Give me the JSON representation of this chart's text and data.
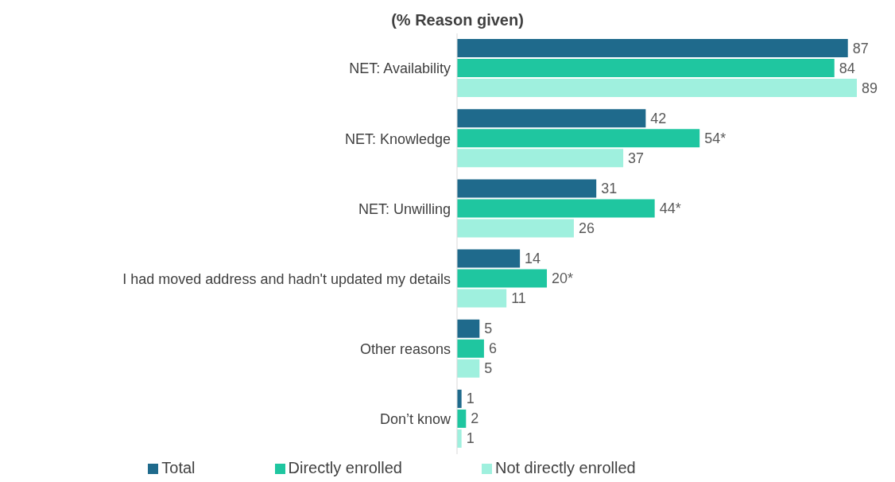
{
  "chart_data": {
    "type": "bar",
    "orientation": "horizontal",
    "title": "(% Reason given)",
    "categories": [
      "NET: Availability",
      "NET: Knowledge",
      "NET: Unwilling",
      "I had moved address and hadn't updated my details",
      "Other reasons",
      "Don’t know"
    ],
    "series": [
      {
        "name": "Total",
        "color": "#1f6a8c",
        "values": [
          87,
          42,
          31,
          14,
          5,
          1
        ],
        "value_labels": [
          "87",
          "42",
          "31",
          "14",
          "5",
          "1"
        ]
      },
      {
        "name": "Directly enrolled",
        "color": "#1fc6a0",
        "values": [
          84,
          54,
          44,
          20,
          6,
          2
        ],
        "value_labels": [
          "84",
          "54*",
          "44*",
          "20*",
          "6",
          "2"
        ]
      },
      {
        "name": "Not directly enrolled",
        "color": "#9ff0de",
        "values": [
          89,
          37,
          26,
          11,
          5,
          1
        ],
        "value_labels": [
          "89",
          "37",
          "26",
          "11",
          "5",
          "1"
        ]
      }
    ],
    "legend": "bottom",
    "grid": false
  }
}
